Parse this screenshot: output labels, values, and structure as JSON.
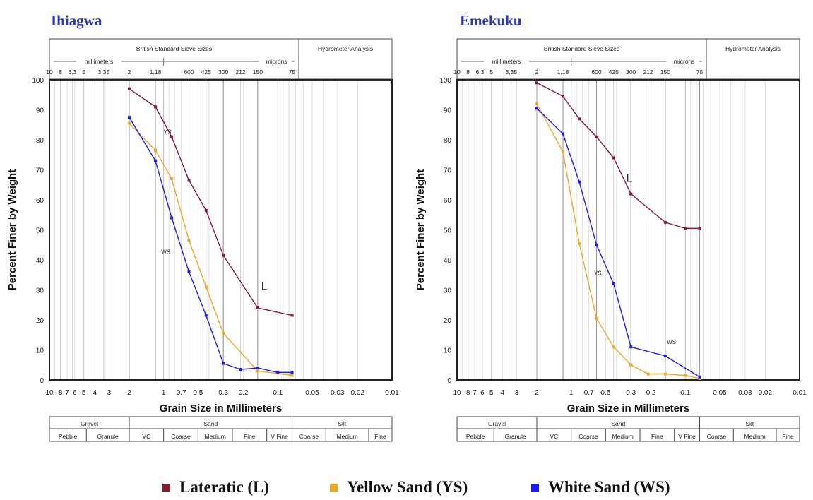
{
  "legend": [
    {
      "label": "Lateratic (L)",
      "color": "#8b1a2b"
    },
    {
      "label": "Yellow Sand (YS)",
      "color": "#f5a623"
    },
    {
      "label": "White Sand (WS)",
      "color": "#1a1aff"
    }
  ],
  "header": {
    "sieve_title": "British Standard Sieve Sizes",
    "hydrometer": "Hydrometer Analysis",
    "millimeters": "millimeters",
    "microns": "microns",
    "sieve_ticks": [
      {
        "label": "10",
        "x": 10
      },
      {
        "label": "8",
        "x": 8
      },
      {
        "label": "6.3",
        "x": 6.3
      },
      {
        "label": "5",
        "x": 5
      },
      {
        "label": "3.35",
        "x": 3.35
      },
      {
        "label": "2",
        "x": 2
      },
      {
        "label": "1.18",
        "x": 1.18
      },
      {
        "label": "600",
        "x": 0.6
      },
      {
        "label": "425",
        "x": 0.425
      },
      {
        "label": "300",
        "x": 0.3
      },
      {
        "label": "212",
        "x": 0.212
      },
      {
        "label": "150",
        "x": 0.15
      },
      {
        "label": "75",
        "x": 0.075
      }
    ]
  },
  "footer": {
    "groups": [
      "Gravel",
      "Sand",
      "Silt"
    ],
    "subs": [
      "Pebble",
      "Granule",
      "VC",
      "Coarse",
      "Medium",
      "Fine",
      "V Fine",
      "Coarse",
      "Medium",
      "Fine"
    ]
  },
  "chart_data": [
    {
      "type": "line",
      "title": "Ihiagwa",
      "xlabel": "Grain Size in Millimeters",
      "ylabel": "Percent Finer by Weight",
      "x_scale": "log",
      "xlim": [
        10,
        0.01
      ],
      "ylim": [
        0,
        100
      ],
      "x_ticks": [
        "10",
        "8",
        "7",
        "6",
        "5",
        "4",
        "3",
        "2",
        "1",
        "0.7",
        "0.5",
        "0.3",
        "0.2",
        "0.1",
        "0.05",
        "0.03",
        "0.02",
        "0.01"
      ],
      "y_ticks": [
        0,
        10,
        20,
        30,
        40,
        50,
        60,
        70,
        80,
        90,
        100
      ],
      "series": [
        {
          "name": "Lateratic (L)",
          "tag": "L",
          "color": "#8b1a2b",
          "x": [
            2,
            1.18,
            0.85,
            0.6,
            0.425,
            0.3,
            0.15,
            0.075
          ],
          "y": [
            97,
            91,
            81,
            66.5,
            56.5,
            41.5,
            24,
            21.5
          ]
        },
        {
          "name": "Yellow Sand (YS)",
          "tag": "YS",
          "color": "#f5a623",
          "x": [
            2,
            1.18,
            0.85,
            0.6,
            0.425,
            0.3,
            0.15,
            0.075
          ],
          "y": [
            85.5,
            76.5,
            67,
            46.5,
            31,
            15.5,
            3,
            1.5
          ]
        },
        {
          "name": "White Sand (WS)",
          "tag": "WS",
          "color": "#1a1aff",
          "x": [
            2,
            1.18,
            0.85,
            0.6,
            0.425,
            0.3,
            0.212,
            0.15,
            0.1,
            0.075
          ],
          "y": [
            87.5,
            73,
            54,
            36,
            21.5,
            5.5,
            3.5,
            4,
            2.5,
            2.5
          ]
        }
      ]
    },
    {
      "type": "line",
      "title": "Emekuku",
      "xlabel": "Grain Size in Millimeters",
      "ylabel": "Percent Finer by Weight",
      "x_scale": "log",
      "xlim": [
        10,
        0.01
      ],
      "ylim": [
        0,
        100
      ],
      "x_ticks": [
        "10",
        "8",
        "7",
        "6",
        "5",
        "4",
        "3",
        "2",
        "1",
        "0.7",
        "0.5",
        "0.3",
        "0.2",
        "0.1",
        "0.05",
        "0.03",
        "0.02",
        "0.01"
      ],
      "y_ticks": [
        0,
        10,
        20,
        30,
        40,
        50,
        60,
        70,
        80,
        90,
        100
      ],
      "series": [
        {
          "name": "Lateratic (L)",
          "tag": "L",
          "color": "#8b1a2b",
          "x": [
            2,
            1.18,
            0.85,
            0.6,
            0.425,
            0.3,
            0.15,
            0.1,
            0.075
          ],
          "y": [
            99,
            94.5,
            87,
            81,
            74,
            62,
            52.5,
            50.5,
            50.5
          ]
        },
        {
          "name": "Yellow Sand (YS)",
          "tag": "YS",
          "color": "#f5a623",
          "x": [
            2,
            1.18,
            0.85,
            0.6,
            0.425,
            0.3,
            0.212,
            0.15,
            0.1,
            0.075
          ],
          "y": [
            92,
            76,
            45.5,
            20.5,
            11,
            5,
            2,
            2,
            1.5,
            0.5
          ]
        },
        {
          "name": "White Sand (WS)",
          "tag": "WS",
          "color": "#1a1aff",
          "x": [
            2,
            1.18,
            0.85,
            0.6,
            0.425,
            0.3,
            0.15,
            0.075
          ],
          "y": [
            90.5,
            82,
            66,
            45,
            32,
            11,
            8,
            1
          ]
        }
      ]
    }
  ]
}
